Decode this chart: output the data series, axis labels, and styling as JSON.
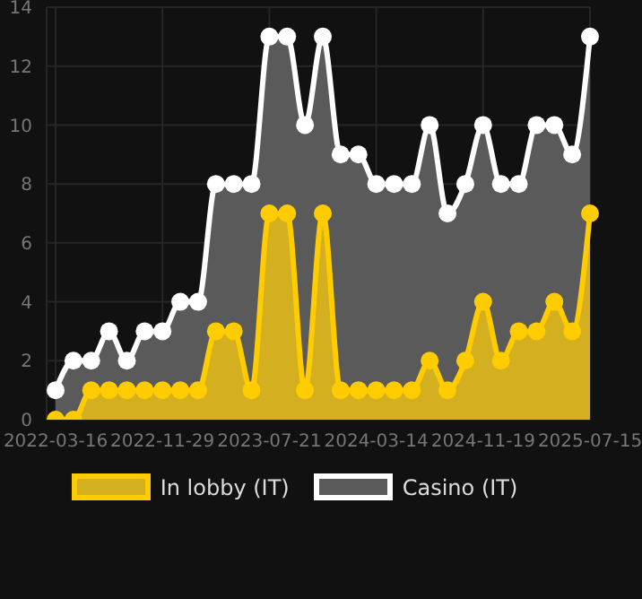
{
  "chart_data": {
    "type": "area",
    "categories": [
      "2022-03-16",
      null,
      null,
      null,
      null,
      null,
      "2022-11-29",
      null,
      null,
      null,
      null,
      null,
      "2023-07-21",
      null,
      null,
      null,
      null,
      null,
      "2024-03-14",
      null,
      null,
      null,
      null,
      null,
      "2024-11-19",
      null,
      null,
      null,
      null,
      null,
      "2025-07-15"
    ],
    "series": [
      {
        "name": "In lobby (IT)",
        "color": "#ffcc00",
        "values": [
          0,
          0,
          1,
          1,
          1,
          1,
          1,
          1,
          1,
          3,
          3,
          1,
          7,
          7,
          1,
          7,
          1,
          1,
          1,
          1,
          1,
          2,
          1,
          2,
          4,
          2,
          3,
          3,
          4,
          3,
          7
        ]
      },
      {
        "name": "Casino (IT)",
        "color": "#ffffff",
        "values": [
          1,
          2,
          2,
          3,
          2,
          3,
          3,
          4,
          4,
          8,
          8,
          8,
          13,
          13,
          10,
          13,
          9,
          9,
          8,
          8,
          8,
          10,
          7,
          8,
          10,
          8,
          8,
          10,
          10,
          9,
          13
        ]
      }
    ],
    "ylim": [
      0,
      14
    ],
    "yticks": [
      0,
      2,
      4,
      6,
      8,
      10,
      12,
      14
    ],
    "grid": true,
    "legend": "bottom",
    "marker": "circle",
    "line_style": "solid"
  }
}
